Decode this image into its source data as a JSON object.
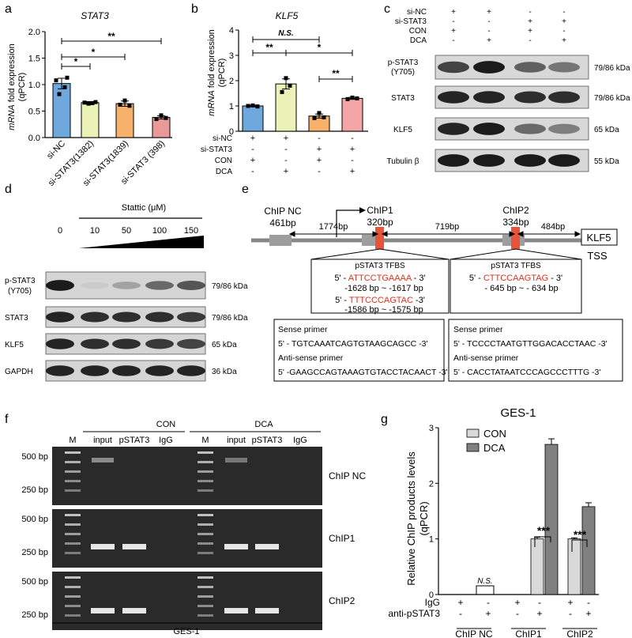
{
  "panels": {
    "a": {
      "letter": "a",
      "title": "STAT3",
      "ylabel1": "mRNA",
      "ylabel2": " fold expression",
      "ylabel3": "(qPCR)",
      "ticks": [
        "0.0",
        "0.5",
        "1.0",
        "1.5",
        "2.0"
      ],
      "categories": [
        "si-NC",
        "si-STAT3(1382)",
        "si-STAT3(1839)",
        "si-STAT3 (398)"
      ],
      "sig": [
        "**",
        "*",
        "*"
      ]
    },
    "b": {
      "letter": "b",
      "title": "KLF5",
      "ylabel1": "mRNA",
      "ylabel2": " fold expression",
      "ylabel3": "(qPCR)",
      "ticks": [
        "0",
        "1",
        "2",
        "3",
        "4"
      ],
      "sig": [
        "N.S.",
        "**",
        "*",
        "**"
      ],
      "row_labels": [
        "si-NC",
        "si-STAT3",
        "CON",
        "DCA"
      ],
      "signs": [
        [
          "+",
          "+",
          "-",
          "-"
        ],
        [
          "-",
          "-",
          "+",
          "+"
        ],
        [
          "+",
          "-",
          "+",
          "-"
        ],
        [
          "-",
          "+",
          "-",
          "+"
        ]
      ]
    },
    "c": {
      "letter": "c",
      "row_labels": [
        "si-NC",
        "si-STAT3",
        "CON",
        "DCA"
      ],
      "signs": [
        [
          "+",
          "+",
          "-",
          "-"
        ],
        [
          "-",
          "-",
          "+",
          "+"
        ],
        [
          "+",
          "-",
          "+",
          "-"
        ],
        [
          "-",
          "+",
          "-",
          "+"
        ]
      ],
      "blots": [
        "p-STAT3\n(Y705)",
        "STAT3",
        "KLF5",
        "Tubulin β"
      ],
      "blot_line1": [
        "p-STAT3",
        "STAT3",
        "KLF5",
        "Tubulin β"
      ],
      "blot_line2": [
        "(Y705)",
        "",
        "",
        ""
      ],
      "sizes": [
        "79/86 kDa",
        "79/86 kDa",
        "65 kDa",
        "55 kDa"
      ]
    },
    "d": {
      "letter": "d",
      "header": "Stattic (μM)",
      "doses": [
        "0",
        "10",
        "50",
        "100",
        "150"
      ],
      "blot_line1": [
        "p-STAT3",
        "STAT3",
        "KLF5",
        "GAPDH"
      ],
      "blot_line2": [
        "(Y705)",
        "",
        "",
        ""
      ],
      "sizes": [
        "79/86 kDa",
        "79/86 kDa",
        "65 kDa",
        "36 kDa"
      ]
    },
    "e": {
      "letter": "e",
      "chipnc": [
        "ChIP NC",
        "461bp"
      ],
      "chip1": [
        "ChIP1",
        "320bp"
      ],
      "chip2": [
        "ChIP2",
        "334bp"
      ],
      "dist": [
        "1774bp",
        "719bp",
        "484bp"
      ],
      "gene": "KLF5",
      "tss": "TSS",
      "tfbs": "pSTAT3 TFBS",
      "left_box": {
        "seq1": "ATTCCTGAAAA",
        "pos1": "-1628 bp ~ -1617 bp",
        "seq2": "TTTCCCAGTAC",
        "pos2": "-1586 bp ~ -1575 bp"
      },
      "right_box": {
        "seq1": "CTTCCAAGTAG",
        "pos1": "- 645 bp ~ - 634 bp"
      },
      "primer_left": [
        "Sense primer",
        "5' - TGTCAAATCAGTGTAAGCAGCC -3'",
        "Anti-sense primer",
        "5' -GAAGCCAGTAAAGTGTACCTACAACT -3'"
      ],
      "primer_right": [
        "Sense primer",
        "5' - TCCCCTAATGTTGGACACCTAAC -3'",
        "Anti-sense primer",
        "5' - CACCTATAATCCCAGCCCTTTG -3'"
      ]
    },
    "f": {
      "letter": "f",
      "groups": [
        "CON",
        "DCA"
      ],
      "lanes": [
        "M",
        "input",
        "pSTAT3",
        "IgG",
        "M",
        "input",
        "pSTAT3",
        "IgG"
      ],
      "rows": [
        "ChIP NC",
        "ChIP1",
        "ChIP2"
      ],
      "markers": [
        "500 bp",
        "250 bp"
      ],
      "footer": "GES-1"
    },
    "g": {
      "letter": "g",
      "title": "GES-1",
      "ylabel1": "Relative ChIP products levels",
      "ylabel2": "(qPCR)",
      "ticks": [
        "0",
        "1",
        "2",
        "3"
      ],
      "legend": [
        "CON",
        "DCA"
      ],
      "sig": [
        "N.S.",
        "***",
        "***"
      ],
      "row_labels": [
        "IgG",
        "anti-pSTAT3"
      ],
      "signs": [
        [
          "+",
          "-",
          "+",
          "-",
          "+",
          "-"
        ],
        [
          "-",
          "+",
          "-",
          "+",
          "-",
          "+"
        ]
      ],
      "groups": [
        "ChIP NC",
        "ChIP1",
        "ChIP2"
      ]
    }
  },
  "chart_data": [
    {
      "type": "bar",
      "title": "STAT3",
      "ylabel": "mRNA fold expression (qPCR)",
      "categories": [
        "si-NC",
        "si-STAT3(1382)",
        "si-STAT3(1839)",
        "si-STAT3 (398)"
      ],
      "values": [
        1.02,
        0.66,
        0.64,
        0.38
      ],
      "errors": [
        0.1,
        0.02,
        0.05,
        0.03
      ],
      "colors": [
        "#6fa8dc",
        "#eaf2b8",
        "#f6b26b",
        "#ea9999"
      ],
      "ylim": [
        0,
        2
      ]
    },
    {
      "type": "bar",
      "title": "KLF5",
      "ylabel": "mRNA fold expression (qPCR)",
      "categories": [
        "si-NC/CON",
        "si-NC/DCA",
        "si-STAT3/CON",
        "si-STAT3/DCA"
      ],
      "values": [
        1.0,
        1.87,
        0.6,
        1.3
      ],
      "errors": [
        0.03,
        0.2,
        0.08,
        0.04
      ],
      "colors": [
        "#6fa8dc",
        "#eaf2b8",
        "#f6b26b",
        "#f4a6a6"
      ],
      "ylim": [
        0,
        4
      ]
    },
    {
      "type": "bar",
      "title": "GES-1",
      "ylabel": "Relative ChIP products levels (qPCR)",
      "categories": [
        "ChIP NC",
        "ChIP1",
        "ChIP2"
      ],
      "series": [
        {
          "name": "CON",
          "values": [
            0,
            1.0,
            1.0
          ],
          "errors": [
            0,
            0.03,
            0.02
          ]
        },
        {
          "name": "DCA",
          "values": [
            0,
            2.7,
            1.58
          ],
          "errors": [
            0,
            0.1,
            0.07
          ]
        }
      ],
      "colors": [
        "#d9d9d9",
        "#808080"
      ],
      "ylim": [
        0,
        3
      ]
    }
  ]
}
